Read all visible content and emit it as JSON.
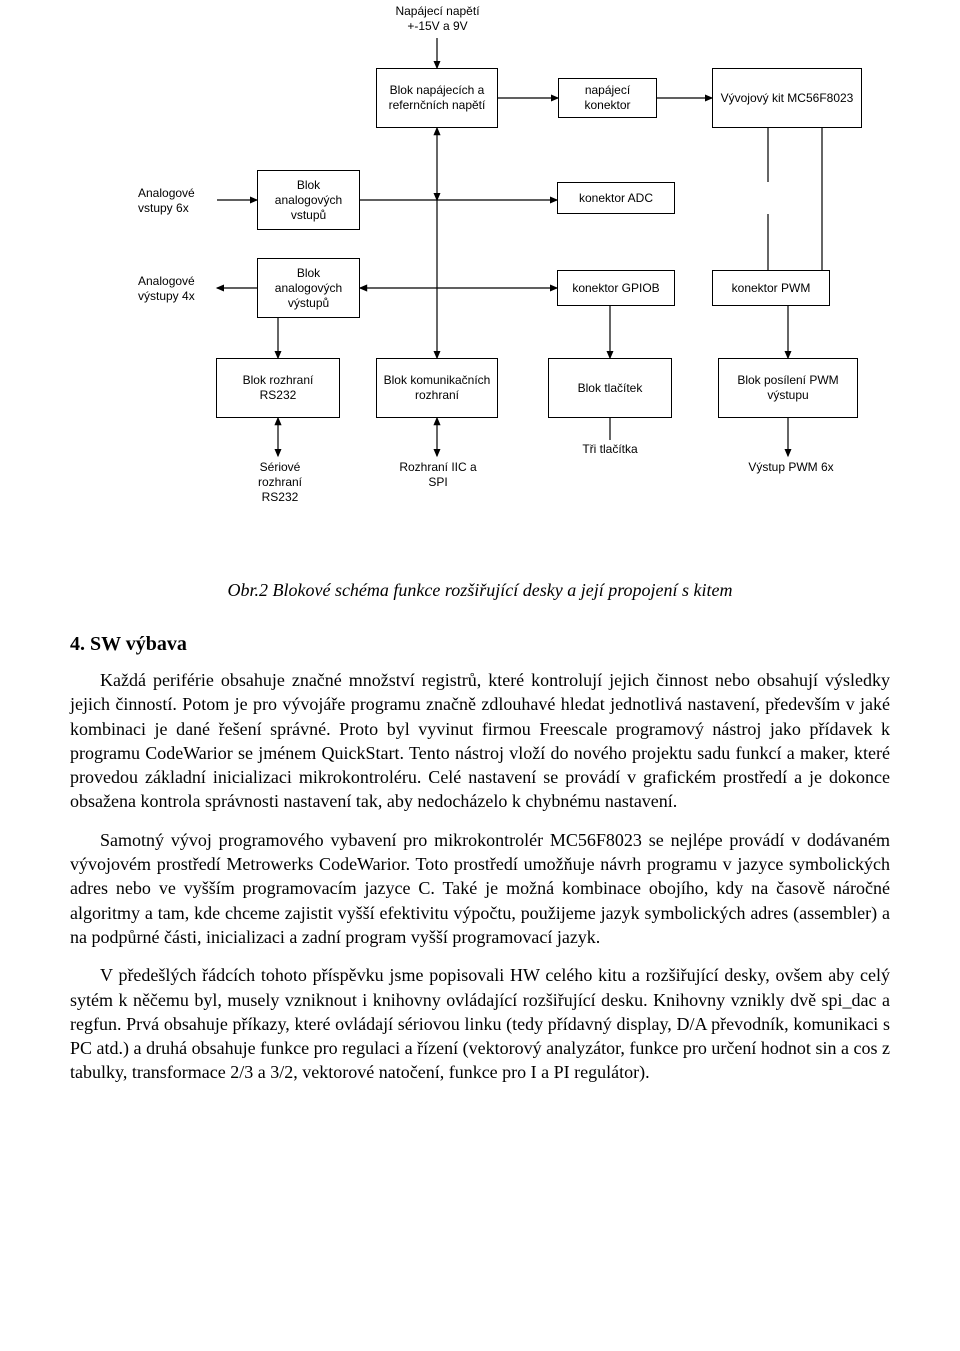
{
  "diagram": {
    "background": "#ffffff",
    "box_border": "#000000",
    "line_color": "#000000",
    "font_size": 12,
    "nodes": {
      "top_label": "Napájecí napětí\n+-15V a 9V",
      "b_pwr": "Blok napájecích a refernčních napětí",
      "n_conn": "napájecí konektor",
      "kit": "Vývojový kit MC56F8023",
      "an_in_lbl": "Analogové vstupy 6x",
      "b_anin": "Blok analogových vstupů",
      "adc": "konektor ADC",
      "an_out_lbl": "Analogové výstupy 4x",
      "b_anout": "Blok analogových výstupů",
      "gpiob": "konektor GPIOB",
      "pwmconn": "konektor PWM",
      "rs232": "Blok rozhraní RS232",
      "comm": "Blok komunikačních rozhraní",
      "btn": "Blok tlačítek",
      "pwmamp": "Blok posílení PWM výstupu",
      "ser_lbl": "Sériové rozhraní RS232",
      "iic_lbl": "Rozhraní IIC a SPI",
      "tri_lbl": "Tři tlačítka",
      "pwmout_lbl": "Výstup PWM 6x"
    }
  },
  "caption": "Obr.2 Blokové schéma funkce rozšiřující desky a její propojení s kitem",
  "section_title": "4. SW výbava",
  "para1": "Každá periférie obsahuje značné množství registrů, které kontrolují jejich činnost nebo obsahují výsledky jejich činností. Potom je pro vývojáře programu značně zdlouhavé hledat jednotlivá nastavení, především v jaké kombinaci je dané řešení správné. Proto byl vyvinut firmou Freescale programový nástroj jako přídavek k programu CodeWarior se jménem QuickStart. Tento nástroj vloží do nového projektu sadu funkcí a maker, které provedou základní inicializaci mikrokontroléru. Celé nastavení se provádí v grafickém prostředí a je dokonce obsažena kontrola správnosti nastavení tak, aby nedocházelo k chybnému nastavení.",
  "para2": "Samotný vývoj programového vybavení pro mikrokontrolér MC56F8023 se nejlépe provádí v dodávaném vývojovém prostředí Metrowerks CodeWarior. Toto prostředí umožňuje návrh programu v jazyce symbolických adres nebo ve vyšším programovacím jazyce C. Také je možná kombinace obojího, kdy na časově náročné algoritmy a tam, kde chceme zajistit vyšší efektivitu výpočtu, použijeme jazyk symbolických adres (assembler) a na podpůrné části, inicializaci a zadní program vyšší programovací jazyk.",
  "para3": "V předešlých řádcích tohoto příspěvku jsme popisovali HW celého kitu a rozšiřující desky, ovšem aby celý sytém k něčemu byl, musely vzniknout i knihovny ovládající rozšiřující desku. Knihovny vznikly dvě spi_dac a regfun. Prvá obsahuje příkazy, které ovládají sériovou linku (tedy přídavný display, D/A převodník, komunikaci s PC atd.) a druhá obsahuje funkce pro regulaci a řízení (vektorový analyzátor, funkce pro určení hodnot sin a cos z tabulky, transformace 2/3 a 3/2, vektorové natočení, funkce pro I a PI regulátor)."
}
